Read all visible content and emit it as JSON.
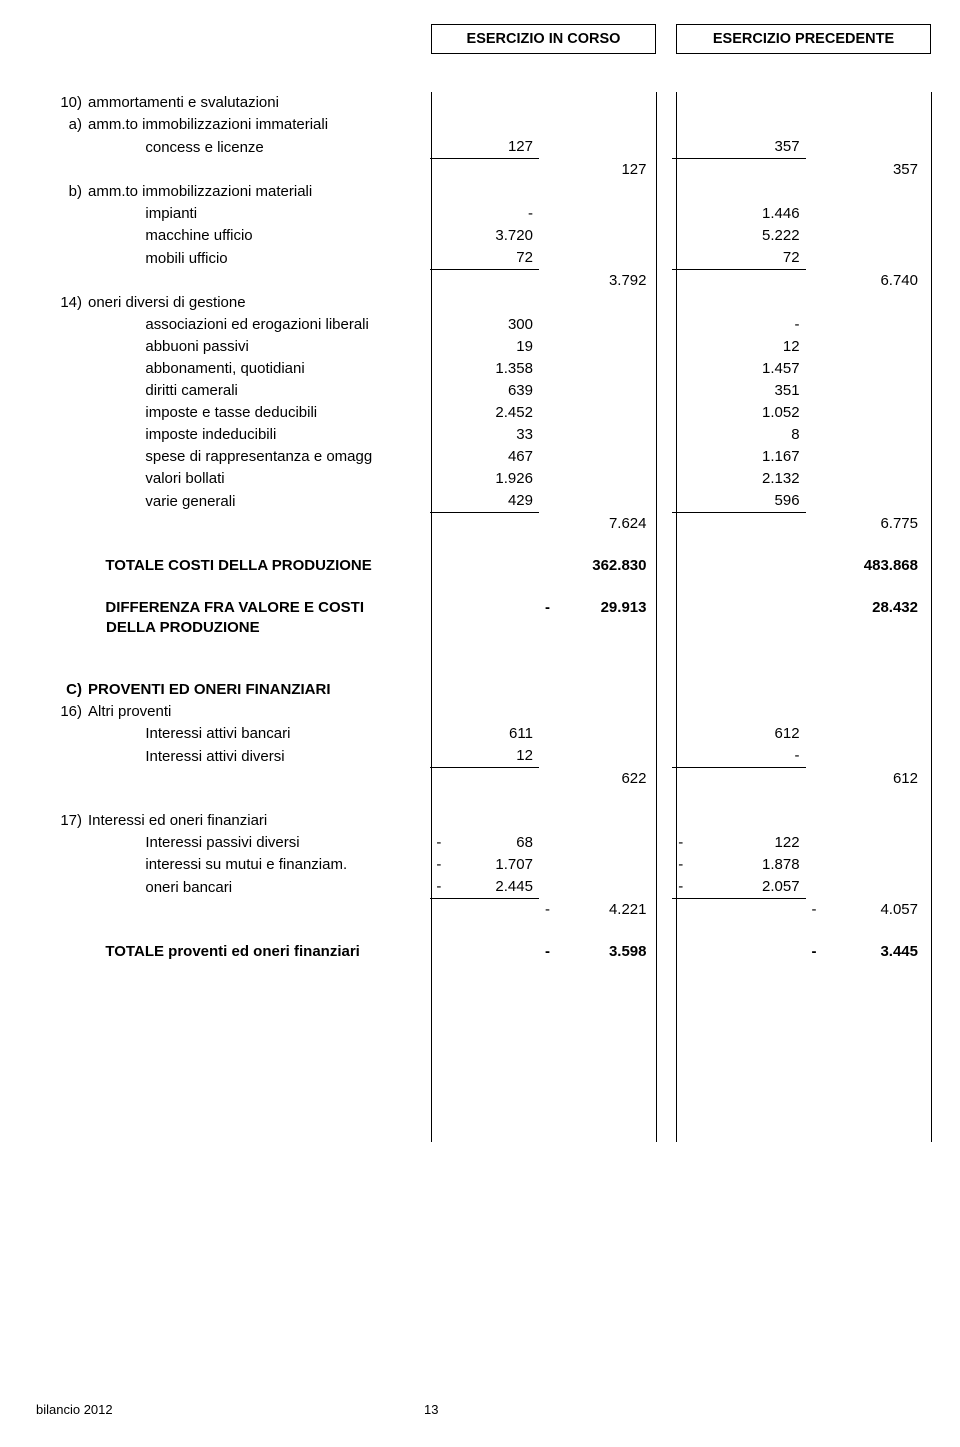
{
  "headers": {
    "current": "ESERCIZIO IN CORSO",
    "previous": "ESERCIZIO PRECEDENTE"
  },
  "section10": {
    "ref": "10)",
    "title": "ammortamenti e svalutazioni",
    "a": {
      "ref": "a)",
      "title": "amm.to immobilizzazioni immateriali",
      "rows": [
        {
          "label": "concess e licenze",
          "cur": "127",
          "prev": "357"
        }
      ],
      "subtotal": {
        "cur": "127",
        "prev": "357"
      }
    },
    "b": {
      "ref": "b)",
      "title": "amm.to immobilizzazioni materiali",
      "rows": [
        {
          "label": "impianti",
          "cur": "-",
          "prev": "1.446"
        },
        {
          "label": "macchine ufficio",
          "cur": "3.720",
          "prev": "5.222"
        },
        {
          "label": "mobili ufficio",
          "cur": "72",
          "prev": "72"
        }
      ],
      "subtotal": {
        "cur": "3.792",
        "prev": "6.740"
      }
    }
  },
  "section14": {
    "ref": "14)",
    "title": "oneri diversi di gestione",
    "rows": [
      {
        "label": "associazioni ed erogazioni liberali",
        "cur": "300",
        "prev": "-"
      },
      {
        "label": "abbuoni passivi",
        "cur": "19",
        "prev": "12"
      },
      {
        "label": "abbonamenti, quotidiani",
        "cur": "1.358",
        "prev": "1.457"
      },
      {
        "label": "diritti camerali",
        "cur": "639",
        "prev": "351"
      },
      {
        "label": "imposte e tasse deducibili",
        "cur": "2.452",
        "prev": "1.052"
      },
      {
        "label": "imposte indeducibili",
        "cur": "33",
        "prev": "8"
      },
      {
        "label": "spese di rappresentanza e omagg",
        "cur": "467",
        "prev": "1.167"
      },
      {
        "label": "valori bollati",
        "cur": "1.926",
        "prev": "2.132"
      },
      {
        "label": "varie generali",
        "cur": "429",
        "prev": "596"
      }
    ],
    "subtotal": {
      "cur": "7.624",
      "prev": "6.775"
    }
  },
  "totals": {
    "costi": {
      "label": "TOTALE COSTI DELLA PRODUZIONE",
      "cur": "362.830",
      "prev": "483.868"
    },
    "diff": {
      "label1": "DIFFERENZA FRA VALORE  E COSTI",
      "label2": "DELLA PRODUZIONE",
      "cur_sign": "-",
      "cur": "29.913",
      "prev": "28.432"
    }
  },
  "sectionC": {
    "ref": "C)",
    "title": "PROVENTI ED ONERI FINANZIARI",
    "s16": {
      "ref": "16)",
      "title": "Altri proventi",
      "rows": [
        {
          "label": "Interessi attivi bancari",
          "cur": "611",
          "prev": "612"
        },
        {
          "label": "Interessi attivi  diversi",
          "cur": "12",
          "prev": "-"
        }
      ],
      "subtotal": {
        "cur": "622",
        "prev": "612"
      }
    },
    "s17": {
      "ref": "17)",
      "title": "Interessi ed oneri finanziari",
      "rows": [
        {
          "label": "Interessi passivi diversi",
          "cur_sign": "-",
          "cur": "68",
          "prev_sign": "-",
          "prev": "122"
        },
        {
          "label": "interessi su mutui e finanziam.",
          "cur_sign": "-",
          "cur": "1.707",
          "prev_sign": "-",
          "prev": "1.878"
        },
        {
          "label": "oneri bancari",
          "cur_sign": "-",
          "cur": "2.445",
          "prev_sign": "-",
          "prev": "2.057"
        }
      ],
      "subtotal": {
        "cur_sign": "-",
        "cur": "4.221",
        "prev_sign": "-",
        "prev": "4.057"
      }
    },
    "total": {
      "label": "TOTALE proventi ed oneri finanziari",
      "cur_sign": "-",
      "cur": "3.598",
      "prev_sign": "-",
      "prev": "3.445"
    }
  },
  "footer": {
    "left": "bilancio 2012",
    "page": "13"
  }
}
